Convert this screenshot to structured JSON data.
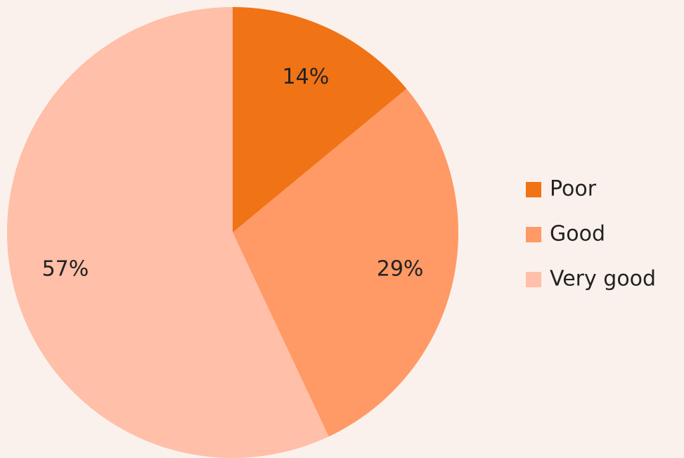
{
  "chart_data": {
    "type": "pie",
    "categories": [
      "Poor",
      "Good",
      "Very good"
    ],
    "values": [
      14,
      29,
      57
    ],
    "value_labels": [
      "14%",
      "29%",
      "57%"
    ],
    "colors": [
      "#f07316",
      "#ff9966",
      "#ffbfa8"
    ],
    "legend": "right"
  }
}
